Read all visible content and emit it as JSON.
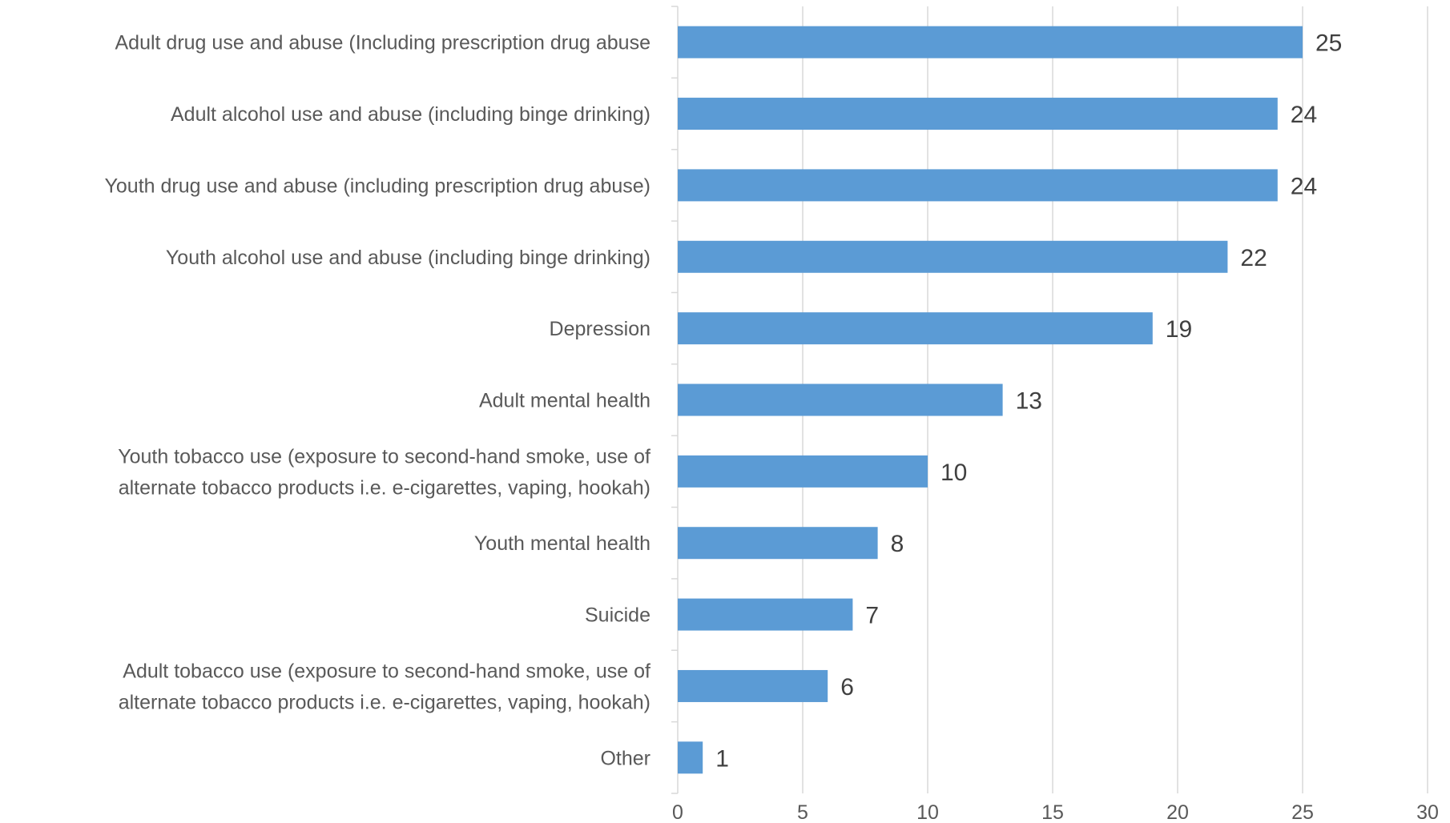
{
  "chart_data": {
    "type": "bar",
    "orientation": "horizontal",
    "categories": [
      [
        "Adult drug use and abuse (Including prescription drug abuse"
      ],
      [
        "Adult alcohol use and abuse (including binge drinking)"
      ],
      [
        "Youth drug use and abuse (including prescription drug abuse)"
      ],
      [
        "Youth alcohol use and abuse (including binge drinking)"
      ],
      [
        "Depression"
      ],
      [
        "Adult mental health"
      ],
      [
        "Youth tobacco use (exposure to second-hand smoke, use of",
        "alternate tobacco products i.e. e-cigarettes, vaping, hookah)"
      ],
      [
        "Youth mental health"
      ],
      [
        "Suicide"
      ],
      [
        "Adult tobacco use (exposure to second-hand smoke, use of",
        "alternate tobacco products i.e. e-cigarettes, vaping, hookah)"
      ],
      [
        "Other"
      ]
    ],
    "values": [
      25,
      24,
      24,
      22,
      19,
      13,
      10,
      8,
      7,
      6,
      1
    ],
    "xlim": [
      0,
      30
    ],
    "xticks": [
      0,
      5,
      10,
      15,
      20,
      25,
      30
    ],
    "grid": true,
    "title": "",
    "xlabel": "",
    "ylabel": "",
    "bar_color": "#5b9bd5"
  }
}
